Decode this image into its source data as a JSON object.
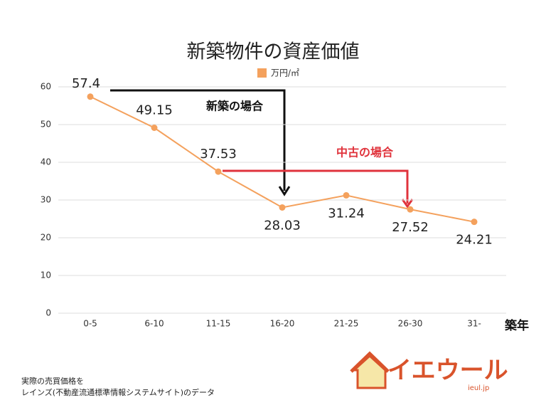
{
  "chart_data": {
    "type": "line",
    "title": "新築物件の資産価値",
    "categories": [
      "0-5",
      "6-10",
      "11-15",
      "16-20",
      "21-25",
      "26-30",
      "31-"
    ],
    "series": [
      {
        "name": "万円/㎡",
        "color": "#f4a15d",
        "values": [
          57.4,
          49.15,
          37.53,
          28.03,
          31.24,
          27.52,
          24.21
        ]
      }
    ],
    "ylim": [
      0,
      60
    ],
    "yticks": [
      0,
      10,
      20,
      30,
      40,
      50,
      60
    ],
    "grid": true,
    "x_label": "築年",
    "annotations": [
      "新築の場合",
      "中古の場合"
    ]
  },
  "footer": {
    "lines": [
      "実際の売買価格を",
      "レインズ(不動産流通標準情報システムサイト)のデータ"
    ]
  },
  "logo": {
    "text": "イエウール",
    "domain": "ieul.jp"
  }
}
